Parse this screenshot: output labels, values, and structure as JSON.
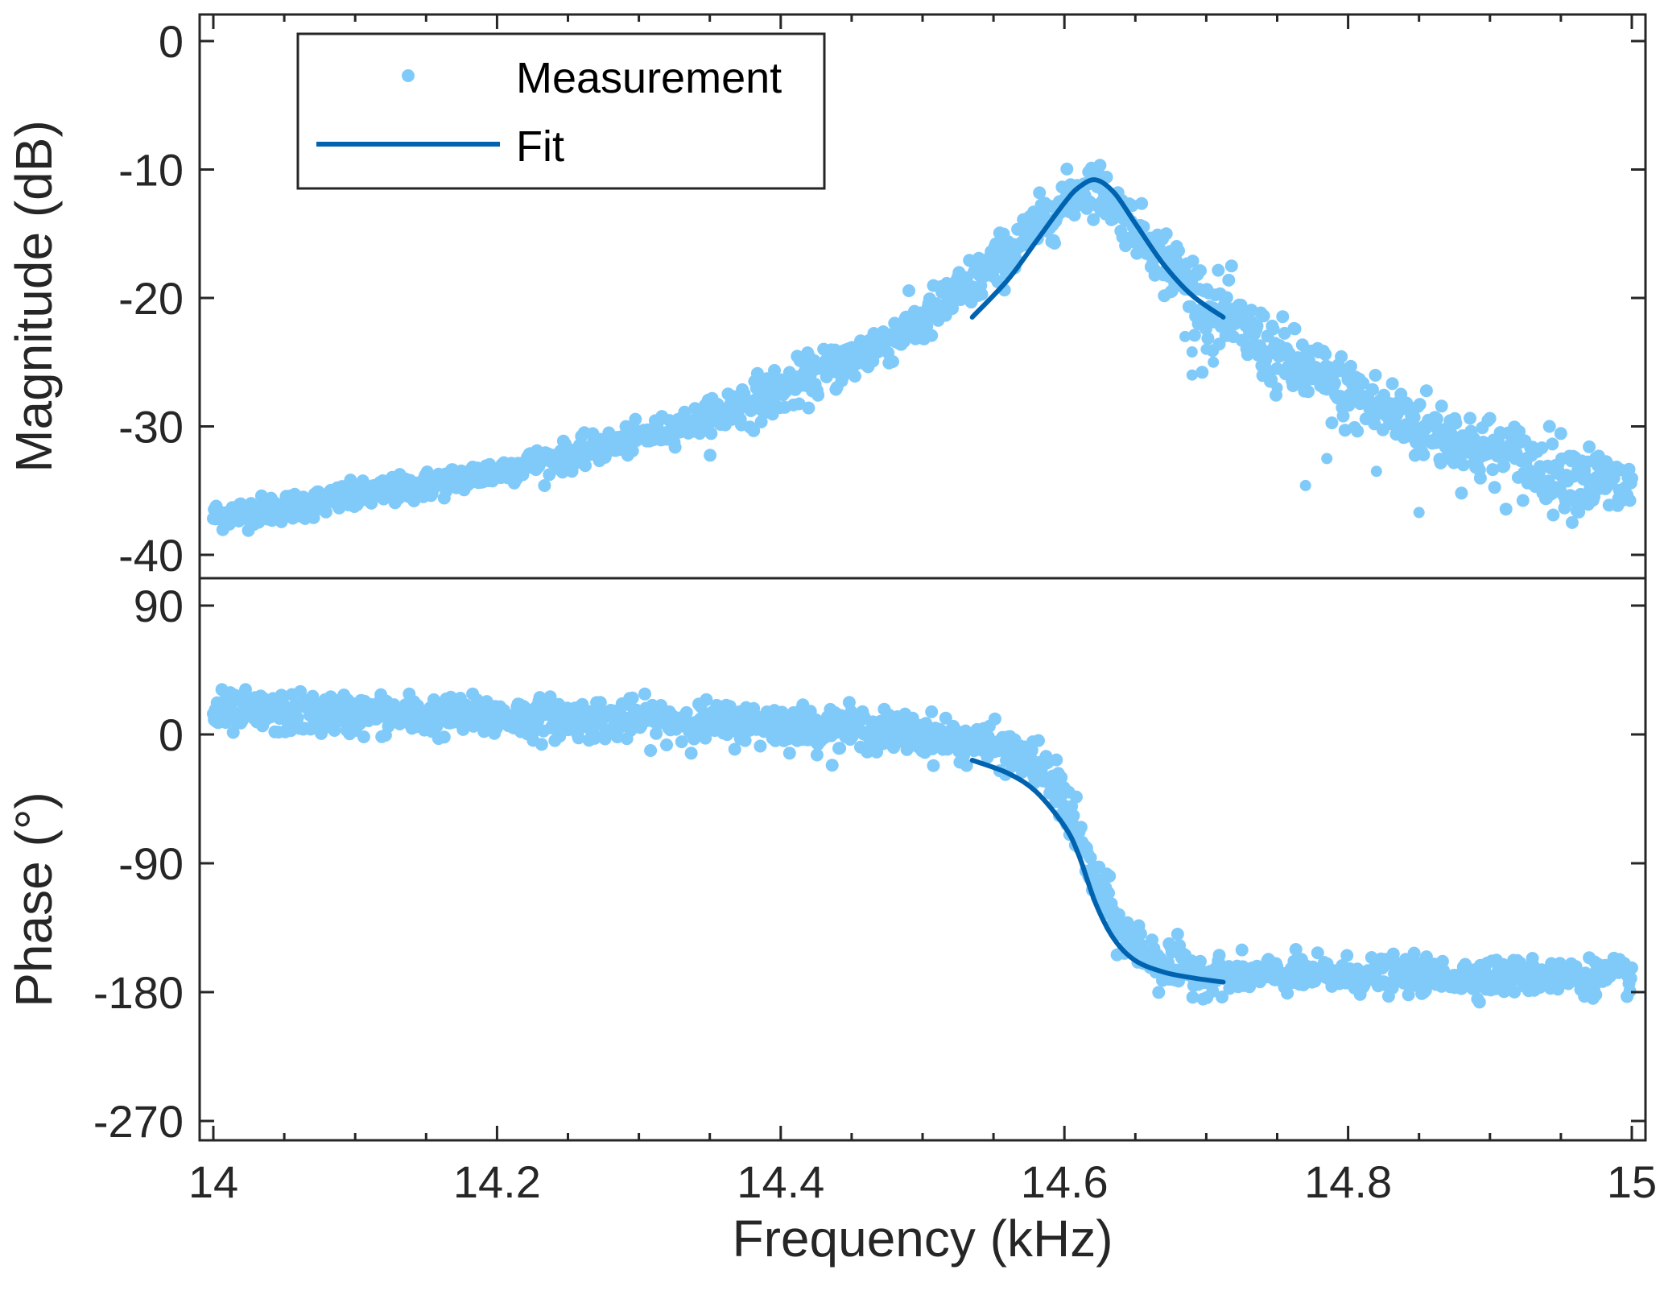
{
  "chart_data": [
    {
      "type": "scatter",
      "panel": "magnitude",
      "ylabel": "Magnitude (dB)",
      "xlim": [
        14,
        15
      ],
      "ylim": [
        -42,
        2
      ],
      "yticks": [
        0,
        -10,
        -20,
        -30,
        -40
      ],
      "ytick_labels": [
        "0",
        "-10",
        "-20",
        "-30",
        "-40"
      ],
      "grid": false,
      "series": [
        {
          "name": "Measurement",
          "style": "markers",
          "color": "#80CAFA",
          "x": [
            14.0,
            14.05,
            14.1,
            14.15,
            14.2,
            14.25,
            14.3,
            14.35,
            14.4,
            14.45,
            14.5,
            14.55,
            14.6,
            14.62,
            14.65,
            14.7,
            14.75,
            14.8,
            14.85,
            14.9,
            14.95,
            15.0
          ],
          "y": [
            -37,
            -36.3,
            -35.5,
            -34.6,
            -33.5,
            -32.3,
            -30.9,
            -29.2,
            -27.2,
            -24.8,
            -21.8,
            -17.5,
            -12.5,
            -11,
            -14.5,
            -20.5,
            -24.5,
            -27.5,
            -30,
            -32,
            -33.6,
            -35
          ]
        },
        {
          "name": "Fit",
          "style": "line",
          "color": "#0063B0",
          "x": [
            14.535,
            14.56,
            14.58,
            14.6,
            14.61,
            14.622,
            14.635,
            14.65,
            14.67,
            14.69,
            14.712
          ],
          "y": [
            -21.5,
            -18.6,
            -15.6,
            -12.6,
            -11.4,
            -10.8,
            -11.8,
            -14.2,
            -17.4,
            -19.8,
            -21.5
          ]
        }
      ],
      "outliers": {
        "x": [
          14.685,
          14.69,
          14.69,
          14.7,
          14.705,
          14.75,
          14.77,
          14.785,
          14.82,
          14.85
        ],
        "y": [
          -23,
          -24.2,
          -26,
          -24,
          -25,
          -27,
          -34.6,
          -32.5,
          -33.5,
          -36.7
        ]
      },
      "legend": {
        "placement": "top-left",
        "entries": [
          {
            "label": "Measurement",
            "style": "marker"
          },
          {
            "label": "Fit",
            "style": "line"
          }
        ]
      }
    },
    {
      "type": "scatter",
      "panel": "phase",
      "xlabel": "Frequency (kHz)",
      "ylabel": "Phase (°)",
      "xlim": [
        14,
        15
      ],
      "ylim": [
        -290,
        110
      ],
      "yticks": [
        90,
        0,
        -90,
        -180,
        -270
      ],
      "ytick_labels": [
        "90",
        "0",
        "-90",
        "-180",
        "-270"
      ],
      "xticks": [
        14,
        14.2,
        14.4,
        14.6,
        14.8,
        15
      ],
      "xtick_labels": [
        "14",
        "14.2",
        "14.4",
        "14.6",
        "14.8",
        "15"
      ],
      "grid": false,
      "series": [
        {
          "name": "Measurement",
          "style": "markers",
          "color": "#80CAFA",
          "x": [
            14.0,
            14.1,
            14.2,
            14.3,
            14.4,
            14.45,
            14.5,
            14.55,
            14.58,
            14.6,
            14.62,
            14.64,
            14.66,
            14.68,
            14.7,
            14.75,
            14.8,
            14.9,
            15.0
          ],
          "y": [
            15,
            14,
            12,
            10,
            7,
            4,
            0,
            -8,
            -20,
            -45,
            -100,
            -138,
            -155,
            -164,
            -168,
            -168,
            -168,
            -169,
            -169
          ]
        },
        {
          "name": "Fit",
          "style": "line",
          "color": "#0063B0",
          "x": [
            14.535,
            14.56,
            14.58,
            14.6,
            14.61,
            14.622,
            14.635,
            14.65,
            14.67,
            14.69,
            14.712
          ],
          "y": [
            -18,
            -27,
            -40,
            -64,
            -84,
            -118,
            -143,
            -158,
            -166,
            -170,
            -173
          ]
        }
      ]
    }
  ]
}
